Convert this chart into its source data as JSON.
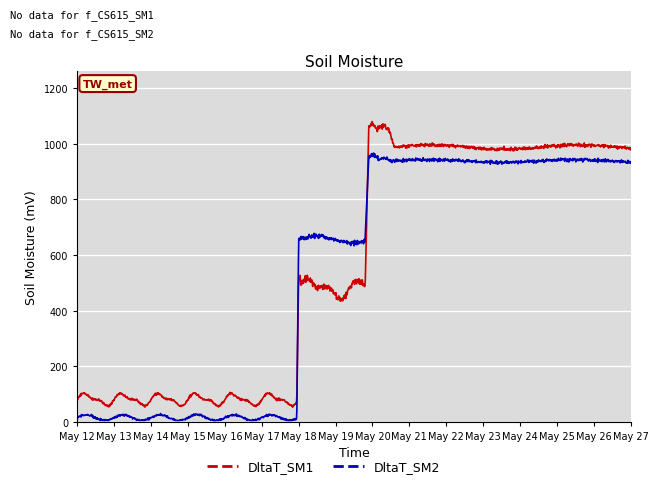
{
  "title": "Soil Moisture",
  "xlabel": "Time",
  "ylabel": "Soil Moisture (mV)",
  "ylim": [
    0,
    1260
  ],
  "yticks": [
    0,
    200,
    400,
    600,
    800,
    1000,
    1200
  ],
  "bg_color": "#dcdcdc",
  "fig_color": "#ffffff",
  "line1_color": "#cc0000",
  "line2_color": "#0000bb",
  "legend_labels": [
    "DltaT_SM1",
    "DltaT_SM2"
  ],
  "annotation_texts": [
    "No data for f_CS615_SM1",
    "No data for f_CS615_SM2"
  ],
  "box_label": "TW_met",
  "box_facecolor": "#ffffcc",
  "box_edgecolor": "#990000",
  "xtick_labels": [
    "May 12",
    "May 13",
    "May 14",
    "May 15",
    "May 16",
    "May 17",
    "May 18",
    "May 19",
    "May 20",
    "May 21",
    "May 22",
    "May 23",
    "May 24",
    "May 25",
    "May 26",
    "May 27"
  ],
  "num_ticks": 16
}
